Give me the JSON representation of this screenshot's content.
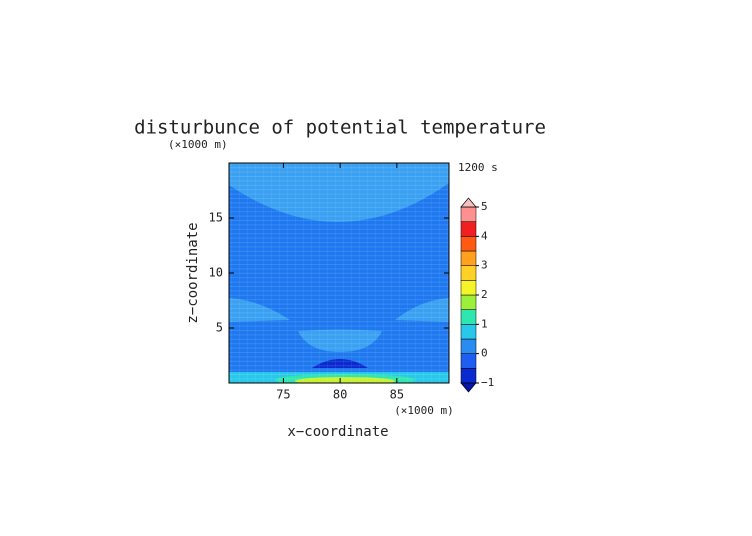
{
  "chart_data": {
    "type": "contour",
    "title": "disturbunce of potential temperature",
    "time_label": "1200 s",
    "x_label": "x−coordinate",
    "y_label": "z−coordinate",
    "x_unit": "(×1000 m)",
    "y_unit": "(×1000 m)",
    "xlim": [
      70.2,
      89.6
    ],
    "ylim": [
      0,
      20
    ],
    "xticks": [
      75,
      80,
      85
    ],
    "yticks": [
      5,
      10,
      15
    ],
    "colorbar": {
      "levels": [
        -1,
        -0.5,
        0,
        0.5,
        1,
        1.5,
        2,
        2.5,
        3,
        3.5,
        4,
        4.5,
        5
      ],
      "colors": [
        "#0a2ad0",
        "#1e5ef0",
        "#2a8cf0",
        "#28c8ea",
        "#30e6b0",
        "#9cf03c",
        "#f4f428",
        "#ffd028",
        "#ffa01e",
        "#ff5a14",
        "#f02020",
        "#ff9090"
      ],
      "over_color": "#f6c0c0",
      "under_color": "#0a14a8",
      "ticks": [
        {
          "value": -1,
          "label": "−1"
        },
        0,
        1,
        2,
        3,
        4,
        5
      ]
    }
  }
}
